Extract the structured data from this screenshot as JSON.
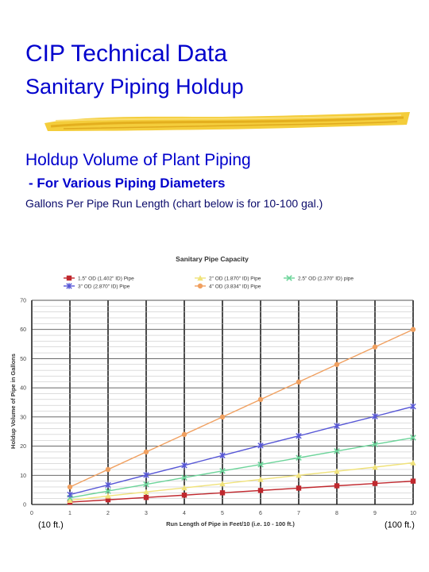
{
  "header": {
    "title": "CIP Technical Data",
    "subtitle": "Sanitary Piping Holdup"
  },
  "section": {
    "heading": "Holdup Volume of Plant Piping",
    "subheading": "- For Various Piping Diameters",
    "note": "Gallons Per Pipe Run Length (chart below is for 10-100 gal.)"
  },
  "footer": {
    "left_label": "(10 ft.)",
    "right_label": "(100 ft.)"
  },
  "colors": {
    "text": "#0000cc",
    "brush": "#f2c419"
  },
  "chart_data": {
    "type": "line",
    "title": "Sanitary Pipe Capacity",
    "xlabel": "Run Length of Pipe in Feet/10 (i.e. 10 - 100 ft.)",
    "ylabel": "Holdup Volume of Pipe in Gallons",
    "x": [
      1,
      2,
      3,
      4,
      5,
      6,
      7,
      8,
      9,
      10
    ],
    "xlim": [
      0,
      10
    ],
    "ylim": [
      0,
      70
    ],
    "x_ticks": [
      "0",
      "1",
      "2",
      "3",
      "4",
      "5",
      "6",
      "7",
      "8",
      "9",
      "10"
    ],
    "y_ticks": [
      "0",
      "10",
      "20",
      "30",
      "40",
      "50",
      "60",
      "70"
    ],
    "grid": true,
    "legend_position": "top",
    "series": [
      {
        "name": "1.5\" OD (1.402\" ID) Pipe",
        "color": "#c0282e",
        "marker": "square",
        "values": [
          0.8,
          1.6,
          2.4,
          3.2,
          4.0,
          4.8,
          5.6,
          6.4,
          7.2,
          8.0
        ]
      },
      {
        "name": "2\" OD (1.870\" ID) Pipe",
        "color": "#f0e27a",
        "marker": "triangle",
        "values": [
          1.4,
          2.9,
          4.3,
          5.7,
          7.1,
          8.6,
          10.0,
          11.4,
          12.8,
          14.3
        ]
      },
      {
        "name": "2.5\" OD (2.370\" ID) pipe",
        "color": "#6cd49a",
        "marker": "x",
        "values": [
          2.3,
          4.6,
          6.9,
          9.2,
          11.5,
          13.7,
          16.0,
          18.3,
          20.6,
          22.9
        ]
      },
      {
        "name": "3\" OD (2.870\" ID) Pipe",
        "color": "#5656d6",
        "marker": "asterisk",
        "values": [
          3.4,
          6.7,
          10.1,
          13.4,
          16.8,
          20.2,
          23.5,
          26.9,
          30.2,
          33.6
        ]
      },
      {
        "name": "4\" OD (3.834\" ID) Pipe",
        "color": "#f0a060",
        "marker": "circle",
        "values": [
          6.0,
          12.0,
          18.0,
          24.0,
          30.0,
          36.0,
          42.0,
          48.0,
          54.0,
          60.0
        ]
      }
    ]
  }
}
